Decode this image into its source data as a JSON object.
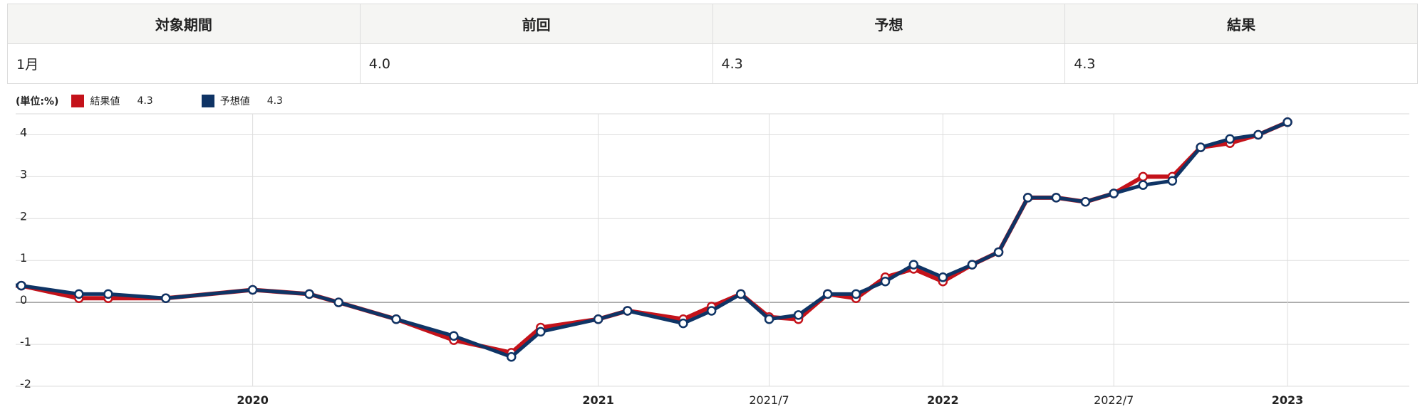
{
  "table": {
    "headers": [
      "対象期間",
      "前回",
      "予想",
      "結果"
    ],
    "row": [
      "1月",
      "4.0",
      "4.3",
      "4.3"
    ]
  },
  "legend": {
    "unit": "(単位:%)",
    "items": [
      {
        "label": "結果値",
        "value": "4.3",
        "color": "#c4121a"
      },
      {
        "label": "予想値",
        "value": "4.3",
        "color": "#0f3465"
      }
    ]
  },
  "chart_data": {
    "type": "line",
    "y_ticks": [
      4,
      3,
      2,
      1,
      0,
      -1,
      -2
    ],
    "ylim": [
      -2,
      4.5
    ],
    "grid": true,
    "x_tick_labels": [
      "2020",
      "2021",
      "2021/7",
      "2022",
      "2022/7",
      "2023"
    ],
    "x_tick_bold": [
      true,
      true,
      false,
      true,
      false,
      true
    ],
    "x_tick_months": [
      "2020-01",
      "2021-01",
      "2021-07",
      "2022-01",
      "2022-07",
      "2023-01"
    ],
    "x_range": [
      "2019-04-25",
      "2023-05-10"
    ],
    "dates": [
      "2019-04",
      "2019-05",
      "2019-07",
      "2019-08",
      "2019-10",
      "2020-01",
      "2020-03",
      "2020-04",
      "2020-06",
      "2020-08",
      "2020-10",
      "2020-11",
      "2021-01",
      "2021-02",
      "2021-04",
      "2021-05",
      "2021-06",
      "2021-07",
      "2021-08",
      "2021-09",
      "2021-10",
      "2021-11",
      "2021-12",
      "2022-01",
      "2022-02",
      "2022-03",
      "2022-04",
      "2022-05",
      "2022-06",
      "2022-07",
      "2022-08",
      "2022-09",
      "2022-10",
      "2022-11",
      "2022-12",
      "2023-01"
    ],
    "series": [
      {
        "name": "結果値",
        "color": "#c4121a",
        "values": [
          0.4,
          0.4,
          0.1,
          0.1,
          0.1,
          0.3,
          0.2,
          0.0,
          -0.4,
          -0.9,
          -1.2,
          -0.6,
          -0.4,
          -0.2,
          -0.4,
          -0.1,
          0.2,
          -0.35,
          -0.4,
          0.2,
          0.1,
          0.6,
          0.8,
          0.5,
          0.9,
          1.2,
          2.5,
          2.5,
          2.4,
          2.6,
          3.0,
          3.0,
          3.7,
          3.8,
          4.0,
          4.3
        ]
      },
      {
        "name": "予想値",
        "color": "#0f3465",
        "values": [
          0.45,
          0.4,
          0.2,
          0.2,
          0.1,
          0.3,
          0.2,
          0.0,
          -0.4,
          -0.8,
          -1.3,
          -0.7,
          -0.4,
          -0.2,
          -0.5,
          -0.2,
          0.2,
          -0.4,
          -0.3,
          0.2,
          0.2,
          0.5,
          0.9,
          0.6,
          0.9,
          1.2,
          2.5,
          2.5,
          2.4,
          2.6,
          2.8,
          2.9,
          3.7,
          3.9,
          4.0,
          4.3
        ]
      }
    ]
  }
}
